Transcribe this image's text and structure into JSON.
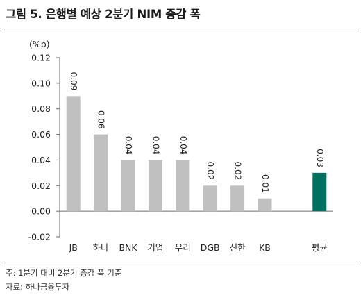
{
  "title": "그림 5. 은행별 예상 2분기 NIM 증감 폭",
  "notes": {
    "basis": "주: 1분기 대비 2분기 증감 폭 기준",
    "source": "자료: 하나금융투자"
  },
  "colors": {
    "bar_default": "#c0c0c0",
    "bar_highlight": "#007060",
    "axis": "#6e6e6e"
  },
  "chart_data": {
    "type": "bar",
    "ylabel": "(%p)",
    "ylim": [
      -0.02,
      0.12
    ],
    "yticks": [
      -0.02,
      0.0,
      0.02,
      0.04,
      0.06,
      0.08,
      0.1,
      0.12
    ],
    "ytick_labels": [
      "-0.02",
      "0.00",
      "0.02",
      "0.04",
      "0.06",
      "0.08",
      "0.10",
      "0.12"
    ],
    "categories": [
      "JB",
      "하나",
      "BNK",
      "기업",
      "우리",
      "DGB",
      "신한",
      "KB",
      "",
      "평균"
    ],
    "values": [
      0.09,
      0.06,
      0.04,
      0.04,
      0.04,
      0.02,
      0.02,
      0.01,
      null,
      0.03
    ],
    "value_labels": [
      "0.09",
      "0.06",
      "0.04",
      "0.04",
      "0.04",
      "0.02",
      "0.02",
      "0.01",
      "",
      "0.03"
    ],
    "highlight": [
      false,
      false,
      false,
      false,
      false,
      false,
      false,
      false,
      false,
      true
    ],
    "grid": false,
    "legend": "none"
  }
}
